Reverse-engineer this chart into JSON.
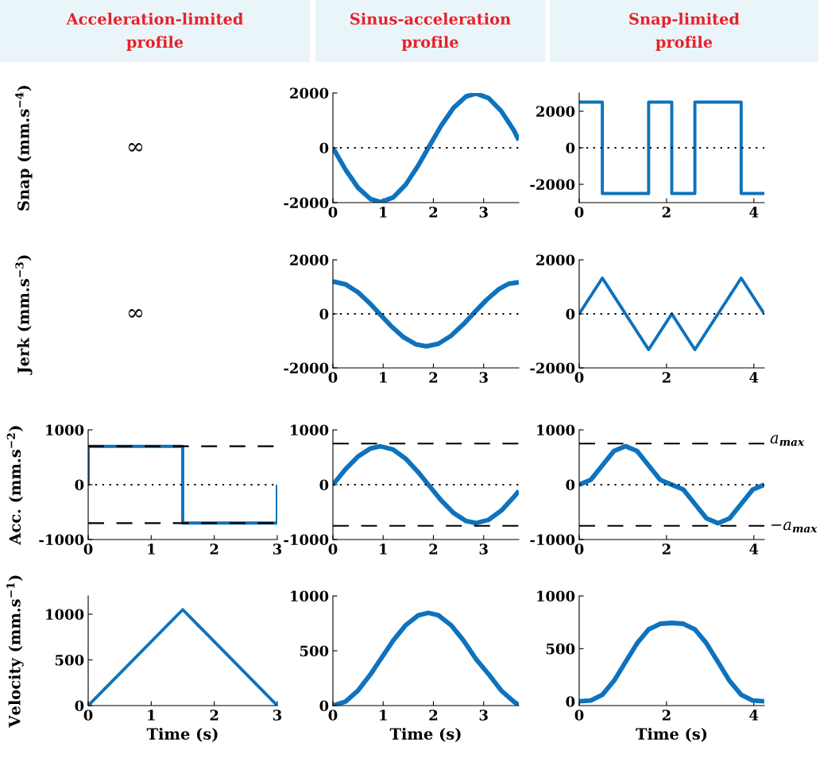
{
  "chart_data": [
    {
      "type": "other",
      "title": "Acceleration-limited profile",
      "ylabel": "Snap (mm.s$^{−4}$)",
      "annotations": [
        "∞"
      ]
    },
    {
      "type": "line",
      "title": "Sinus-acceleration profile",
      "xlim": [
        0,
        3.7
      ],
      "xticks": [
        0,
        1,
        2,
        3
      ],
      "ylim": [
        -2000,
        2000
      ],
      "yticks": [
        -2000,
        0,
        2000
      ],
      "ref_lines": [
        {
          "axis": "y",
          "value": 0,
          "color": "#000000",
          "line_style": "dotted"
        }
      ],
      "series": [
        {
          "color": "#0e72bd",
          "x": [
            0,
            0.25,
            0.5,
            0.75,
            0.95,
            1.2,
            1.45,
            1.7,
            1.9,
            2.15,
            2.4,
            2.65,
            2.85,
            3.1,
            3.35,
            3.6,
            3.7
          ],
          "values": [
            0,
            -794,
            -1457,
            -1873,
            -1980,
            -1814,
            -1340,
            -640,
            0,
            794,
            1457,
            1873,
            1980,
            1814,
            1340,
            640,
            280
          ]
        }
      ]
    },
    {
      "type": "step",
      "title": "Snap-limited profile",
      "xlim": [
        0,
        4.24
      ],
      "xticks": [
        0,
        2,
        4
      ],
      "ylim": [
        -3000,
        3000
      ],
      "yticks": [
        -2000,
        0,
        2000
      ],
      "ref_lines": [
        {
          "axis": "y",
          "value": 0,
          "color": "#000000",
          "line_style": "dotted"
        }
      ],
      "series": [
        {
          "color": "#0e72bd",
          "x": [
            0,
            0.53,
            1.59,
            2.12,
            2.65,
            3.71,
            4.24
          ],
          "values": [
            2500,
            -2500,
            2500,
            -2500,
            2500,
            -2500,
            -2500
          ]
        }
      ]
    },
    {
      "type": "other",
      "ylabel": "Jerk (mm.s$^{−3}$)",
      "annotations": [
        "∞"
      ]
    },
    {
      "type": "line",
      "xlim": [
        0,
        3.7
      ],
      "xticks": [
        0,
        1,
        2,
        3
      ],
      "ylim": [
        -2000,
        2000
      ],
      "yticks": [
        -2000,
        0,
        2000
      ],
      "ref_lines": [
        {
          "axis": "y",
          "value": 0,
          "color": "#000000",
          "line_style": "dotted"
        }
      ],
      "series": [
        {
          "color": "#0e72bd",
          "x": [
            0,
            0.25,
            0.5,
            0.75,
            0.93,
            1.15,
            1.4,
            1.65,
            1.86,
            2.1,
            2.35,
            2.6,
            2.79,
            3.05,
            3.3,
            3.5,
            3.7
          ],
          "values": [
            1200,
            1094,
            797,
            361,
            0,
            -435,
            -857,
            -1127,
            -1200,
            -1106,
            -812,
            -379,
            0,
            504,
            912,
            1117,
            1170
          ]
        }
      ]
    },
    {
      "type": "line",
      "xlim": [
        0,
        4.24
      ],
      "xticks": [
        0,
        2,
        4
      ],
      "ylim": [
        -2000,
        2000
      ],
      "yticks": [
        -2000,
        0,
        2000
      ],
      "ref_lines": [
        {
          "axis": "y",
          "value": 0,
          "color": "#000000",
          "line_style": "dotted"
        }
      ],
      "series": [
        {
          "color": "#0e72bd",
          "x": [
            0,
            0.53,
            1.59,
            2.12,
            2.65,
            3.71,
            4.24
          ],
          "values": [
            0,
            1325,
            -1325,
            0,
            -1325,
            1325,
            0
          ]
        }
      ]
    },
    {
      "type": "line",
      "ylabel": "Acc. (mm.s$^{−2}$)",
      "xlim": [
        0,
        3
      ],
      "xticks": [
        0,
        1,
        2,
        3
      ],
      "ylim": [
        -1000,
        1000
      ],
      "yticks": [
        -1000,
        0,
        1000
      ],
      "ref_lines": [
        {
          "axis": "y",
          "value": 0,
          "color": "#000000",
          "line_style": "dotted"
        },
        {
          "axis": "y",
          "value": 700,
          "color": "#000000",
          "line_style": "dashed"
        },
        {
          "axis": "y",
          "value": -700,
          "color": "#000000",
          "line_style": "dashed"
        }
      ],
      "series": [
        {
          "color": "#0e72bd",
          "x": [
            0,
            0,
            1.5,
            1.5,
            3,
            3
          ],
          "values": [
            0,
            700,
            700,
            -700,
            -700,
            0
          ]
        }
      ]
    },
    {
      "type": "line",
      "xlim": [
        0,
        3.7
      ],
      "xticks": [
        0,
        1,
        2,
        3
      ],
      "ylim": [
        -1000,
        1000
      ],
      "yticks": [
        -1000,
        0,
        1000
      ],
      "ref_lines": [
        {
          "axis": "y",
          "value": 0,
          "color": "#000000",
          "line_style": "dotted"
        },
        {
          "axis": "y",
          "value": 750,
          "color": "#000000",
          "line_style": "dashed"
        },
        {
          "axis": "y",
          "value": -750,
          "color": "#000000",
          "line_style": "dashed"
        }
      ],
      "series": [
        {
          "color": "#0e72bd",
          "x": [
            0,
            0.25,
            0.5,
            0.75,
            0.95,
            1.2,
            1.45,
            1.7,
            1.9,
            2.15,
            2.4,
            2.65,
            2.85,
            3.1,
            3.35,
            3.6,
            3.7
          ],
          "values": [
            0,
            281,
            515,
            662,
            700,
            641,
            474,
            226,
            0,
            -281,
            -515,
            -662,
            -700,
            -641,
            -474,
            -226,
            -115
          ]
        }
      ]
    },
    {
      "type": "line",
      "xlim": [
        0,
        4.24
      ],
      "xticks": [
        0,
        2,
        4
      ],
      "ylim": [
        -1000,
        1000
      ],
      "yticks": [
        -1000,
        0,
        1000
      ],
      "ref_lines": [
        {
          "axis": "y",
          "value": 0,
          "color": "#000000",
          "line_style": "dotted"
        },
        {
          "axis": "y",
          "value": 750,
          "color": "#000000",
          "line_style": "dashed",
          "label": "a$_{max}$"
        },
        {
          "axis": "y",
          "value": -750,
          "color": "#000000",
          "line_style": "dashed",
          "label": "−a$_{max}$"
        }
      ],
      "series": [
        {
          "color": "#0e72bd",
          "x": [
            0,
            0.265,
            0.53,
            0.795,
            1.06,
            1.325,
            1.59,
            1.855,
            2.12,
            2.385,
            2.65,
            2.915,
            3.18,
            3.445,
            3.71,
            3.975,
            4.24
          ],
          "values": [
            0,
            88,
            351,
            614,
            702,
            614,
            351,
            88,
            0,
            -88,
            -351,
            -614,
            -702,
            -614,
            -351,
            -88,
            0
          ]
        }
      ]
    },
    {
      "type": "line",
      "ylabel": "Velocity (mm.s$^{−1}$)",
      "xlabel": "Time (s)",
      "xlim": [
        0,
        3
      ],
      "xticks": [
        0,
        1,
        2,
        3
      ],
      "ylim": [
        0,
        1200
      ],
      "yticks": [
        0,
        500,
        1000
      ],
      "series": [
        {
          "color": "#0e72bd",
          "x": [
            0,
            1.5,
            3
          ],
          "values": [
            0,
            1050,
            0
          ]
        }
      ]
    },
    {
      "type": "line",
      "xlabel": "Time (s)",
      "xlim": [
        0,
        3.7
      ],
      "xticks": [
        0,
        1,
        2,
        3
      ],
      "ylim": [
        0,
        1000
      ],
      "yticks": [
        0,
        500,
        1000
      ],
      "series": [
        {
          "color": "#0e72bd",
          "x": [
            0,
            0.25,
            0.5,
            0.75,
            0.95,
            1.2,
            1.45,
            1.7,
            1.9,
            2.1,
            2.35,
            2.6,
            2.85,
            3.1,
            3.35,
            3.6,
            3.7
          ],
          "values": [
            0,
            36,
            137,
            286,
            423,
            593,
            734,
            823,
            846,
            823,
            734,
            593,
            423,
            286,
            137,
            36,
            6
          ]
        }
      ]
    },
    {
      "type": "line",
      "xlabel": "Time (s)",
      "xlim": [
        0,
        4.24
      ],
      "xticks": [
        0,
        2,
        4
      ],
      "ylim": [
        -40,
        1000
      ],
      "yticks": [
        0,
        500,
        1000
      ],
      "series": [
        {
          "color": "#0e72bd",
          "x": [
            0,
            0.265,
            0.53,
            0.795,
            1.06,
            1.325,
            1.59,
            1.855,
            2.12,
            2.385,
            2.65,
            2.915,
            3.18,
            3.445,
            3.71,
            3.975,
            4.24
          ],
          "values": [
            0,
            8,
            62,
            194,
            372,
            550,
            682,
            736,
            744,
            736,
            682,
            550,
            372,
            194,
            62,
            8,
            0
          ]
        }
      ]
    }
  ]
}
